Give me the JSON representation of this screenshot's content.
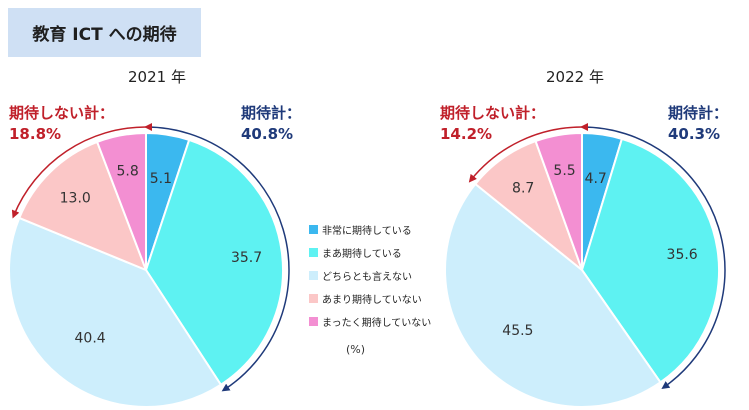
{
  "title": "教育 ICT への期待",
  "unit": "(%)",
  "colors": {
    "very_expect": "#3bb8ef",
    "somewhat_expect": "#5ef2f2",
    "neither": "#cdeefc",
    "not_much": "#fbc7c7",
    "not_at_all": "#f38fd2",
    "red": "#c0202a",
    "navy": "#1f3a7a"
  },
  "chart_data": [
    {
      "type": "pie",
      "title": "2021 年",
      "categories": [
        "非常に期待している",
        "まあ期待している",
        "どちらとも言えない",
        "あまり期待していない",
        "まったく期待していない"
      ],
      "values": [
        5.1,
        35.7,
        40.4,
        13.0,
        5.8
      ],
      "value_labels": [
        "5.1",
        "35.7",
        "40.4",
        "13.0",
        "5.8"
      ],
      "expect_label": "期待計：",
      "expect_total": "40.8%",
      "not_expect_label": "期待しない計：",
      "not_expect_total": "18.8%"
    },
    {
      "type": "pie",
      "title": "2022 年",
      "categories": [
        "非常に期待している",
        "まあ期待している",
        "どちらとも言えない",
        "あまり期待していない",
        "まったく期待していない"
      ],
      "values": [
        4.7,
        35.6,
        45.5,
        8.7,
        5.5
      ],
      "value_labels": [
        "4.7",
        "35.6",
        "45.5",
        "8.7",
        "5.5"
      ],
      "expect_label": "期待計：",
      "expect_total": "40.3%",
      "not_expect_label": "期待しない計：",
      "not_expect_total": "14.2%"
    }
  ],
  "legend": [
    {
      "label": "非常に期待している",
      "color": "#3bb8ef"
    },
    {
      "label": "まあ期待している",
      "color": "#5ef2f2"
    },
    {
      "label": "どちらとも言えない",
      "color": "#cdeefc"
    },
    {
      "label": "あまり期待していない",
      "color": "#fbc7c7"
    },
    {
      "label": "まったく期待していない",
      "color": "#f38fd2"
    }
  ]
}
